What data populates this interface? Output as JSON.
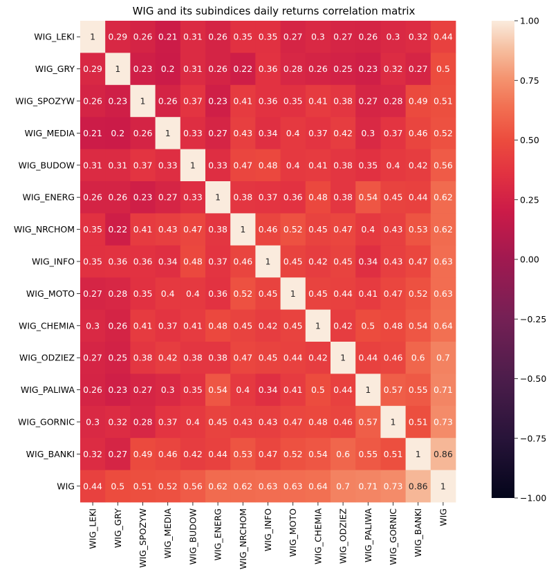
{
  "chart_data": {
    "type": "heatmap",
    "title": "WIG and its subindices daily returns correlation matrix",
    "row_labels": [
      "WIG_LEKI",
      "WIG_GRY",
      "WIG_SPOZYW",
      "WIG_MEDIA",
      "WIG_BUDOW",
      "WIG_ENERG",
      "WIG_NRCHOM",
      "WIG_INFO",
      "WIG_MOTO",
      "WIG_CHEMIA",
      "WIG_ODZIEZ",
      "WIG_PALIWA",
      "WIG_GORNIC",
      "WIG_BANKI",
      "WIG"
    ],
    "col_labels": [
      "WIG_LEKI",
      "WIG_GRY",
      "WIG_SPOZYW",
      "WIG_MEDIA",
      "WIG_BUDOW",
      "WIG_ENERG",
      "WIG_NRCHOM",
      "WIG_INFO",
      "WIG_MOTO",
      "WIG_CHEMIA",
      "WIG_ODZIEZ",
      "WIG_PALIWA",
      "WIG_GORNIC",
      "WIG_BANKI",
      "WIG"
    ],
    "values": [
      [
        1,
        0.29,
        0.26,
        0.21,
        0.31,
        0.26,
        0.35,
        0.35,
        0.27,
        0.3,
        0.27,
        0.26,
        0.3,
        0.32,
        0.44
      ],
      [
        0.29,
        1,
        0.23,
        0.2,
        0.31,
        0.26,
        0.22,
        0.36,
        0.28,
        0.26,
        0.25,
        0.23,
        0.32,
        0.27,
        0.5
      ],
      [
        0.26,
        0.23,
        1,
        0.26,
        0.37,
        0.23,
        0.41,
        0.36,
        0.35,
        0.41,
        0.38,
        0.27,
        0.28,
        0.49,
        0.51
      ],
      [
        0.21,
        0.2,
        0.26,
        1,
        0.33,
        0.27,
        0.43,
        0.34,
        0.4,
        0.37,
        0.42,
        0.3,
        0.37,
        0.46,
        0.52
      ],
      [
        0.31,
        0.31,
        0.37,
        0.33,
        1,
        0.33,
        0.47,
        0.48,
        0.4,
        0.41,
        0.38,
        0.35,
        0.4,
        0.42,
        0.56
      ],
      [
        0.26,
        0.26,
        0.23,
        0.27,
        0.33,
        1,
        0.38,
        0.37,
        0.36,
        0.48,
        0.38,
        0.54,
        0.45,
        0.44,
        0.62
      ],
      [
        0.35,
        0.22,
        0.41,
        0.43,
        0.47,
        0.38,
        1,
        0.46,
        0.52,
        0.45,
        0.47,
        0.4,
        0.43,
        0.53,
        0.62
      ],
      [
        0.35,
        0.36,
        0.36,
        0.34,
        0.48,
        0.37,
        0.46,
        1,
        0.45,
        0.42,
        0.45,
        0.34,
        0.43,
        0.47,
        0.63
      ],
      [
        0.27,
        0.28,
        0.35,
        0.4,
        0.4,
        0.36,
        0.52,
        0.45,
        1,
        0.45,
        0.44,
        0.41,
        0.47,
        0.52,
        0.63
      ],
      [
        0.3,
        0.26,
        0.41,
        0.37,
        0.41,
        0.48,
        0.45,
        0.42,
        0.45,
        1,
        0.42,
        0.5,
        0.48,
        0.54,
        0.64
      ],
      [
        0.27,
        0.25,
        0.38,
        0.42,
        0.38,
        0.38,
        0.47,
        0.45,
        0.44,
        0.42,
        1,
        0.44,
        0.46,
        0.6,
        0.7
      ],
      [
        0.26,
        0.23,
        0.27,
        0.3,
        0.35,
        0.54,
        0.4,
        0.34,
        0.41,
        0.5,
        0.44,
        1,
        0.57,
        0.55,
        0.71
      ],
      [
        0.3,
        0.32,
        0.28,
        0.37,
        0.4,
        0.45,
        0.43,
        0.43,
        0.47,
        0.48,
        0.46,
        0.57,
        1,
        0.51,
        0.73
      ],
      [
        0.32,
        0.27,
        0.49,
        0.46,
        0.42,
        0.44,
        0.53,
        0.47,
        0.52,
        0.54,
        0.6,
        0.55,
        0.51,
        1,
        0.86
      ],
      [
        0.44,
        0.5,
        0.51,
        0.52,
        0.56,
        0.62,
        0.62,
        0.63,
        0.63,
        0.64,
        0.7,
        0.71,
        0.73,
        0.86,
        1
      ]
    ],
    "colorbar": {
      "min": -1.0,
      "max": 1.0,
      "ticks": [
        "1.00",
        "0.75",
        "0.50",
        "0.25",
        "0.00",
        "−0.25",
        "−0.50",
        "−0.75",
        "−1.00"
      ],
      "tick_values": [
        1.0,
        0.75,
        0.5,
        0.25,
        0.0,
        -0.25,
        -0.5,
        -0.75,
        -1.0
      ],
      "colormap": "rocket"
    },
    "annotate": true
  }
}
